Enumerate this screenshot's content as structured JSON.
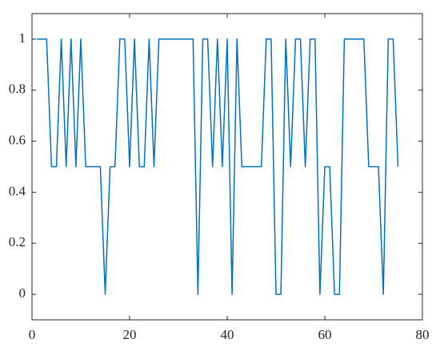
{
  "chart_data": {
    "type": "line",
    "x": [
      1,
      2,
      3,
      4,
      5,
      6,
      7,
      8,
      9,
      10,
      11,
      12,
      13,
      14,
      15,
      16,
      17,
      18,
      19,
      20,
      21,
      22,
      23,
      24,
      25,
      26,
      27,
      28,
      29,
      30,
      31,
      32,
      33,
      34,
      35,
      36,
      37,
      38,
      39,
      40,
      41,
      42,
      43,
      44,
      45,
      46,
      47,
      48,
      49,
      50,
      51,
      52,
      53,
      54,
      55,
      56,
      57,
      58,
      59,
      60,
      61,
      62,
      63,
      64,
      65,
      66,
      67,
      68,
      69,
      70,
      71,
      72,
      73,
      74,
      75
    ],
    "series": [
      {
        "color": "#0072bd",
        "values": [
          1,
          1,
          1,
          0.5,
          0.5,
          1,
          0.5,
          1,
          0.5,
          1,
          0.5,
          0.5,
          0.5,
          0.5,
          0,
          0.5,
          0.5,
          1,
          1,
          0.5,
          1,
          0.5,
          0.5,
          1,
          0.5,
          1,
          1,
          1,
          1,
          1,
          1,
          1,
          1,
          0,
          1,
          1,
          0.5,
          1,
          0.5,
          1,
          0,
          1,
          0.5,
          0.5,
          0.5,
          0.5,
          0.5,
          1,
          1,
          0,
          0,
          1,
          0.5,
          1,
          1,
          0.5,
          1,
          1,
          0,
          0.5,
          0.5,
          0,
          0,
          1,
          1,
          1,
          1,
          1,
          0.5,
          0.5,
          0.5,
          0,
          1,
          1,
          0.5
        ]
      }
    ],
    "xlim": [
      0,
      80
    ],
    "xticks": [
      0,
      20,
      40,
      60,
      80
    ],
    "ylim": [
      -0.1,
      1.1
    ],
    "yticks": [
      0,
      0.2,
      0.4,
      0.6,
      0.8,
      1
    ],
    "grid": false
  }
}
